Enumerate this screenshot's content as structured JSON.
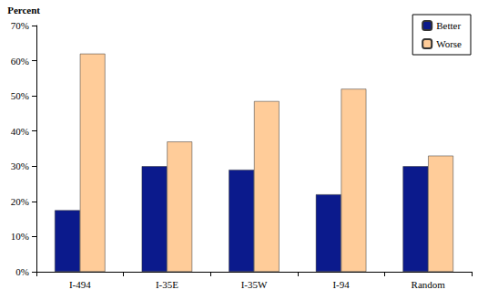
{
  "chart_data": {
    "type": "bar",
    "y_label": "Percent",
    "categories": [
      "I-494",
      "I-35E",
      "I-35W",
      "I-94",
      "Random"
    ],
    "series": [
      {
        "name": "Better",
        "color": "#0b1a8c",
        "values": [
          17.5,
          30,
          29,
          22,
          30
        ]
      },
      {
        "name": "Worse",
        "color": "#ffcc99",
        "values": [
          62,
          37,
          48.5,
          52,
          33
        ]
      }
    ],
    "ylim": [
      0,
      70
    ],
    "yticks": [
      {
        "value": 0,
        "label": "0%"
      },
      {
        "value": 10,
        "label": "10%"
      },
      {
        "value": 20,
        "label": "20%"
      },
      {
        "value": 30,
        "label": "30%"
      },
      {
        "value": 40,
        "label": "40%"
      },
      {
        "value": 50,
        "label": "50%"
      },
      {
        "value": 60,
        "label": "60%"
      },
      {
        "value": 70,
        "label": "70%"
      }
    ],
    "grid": false,
    "legend": "top-right"
  }
}
